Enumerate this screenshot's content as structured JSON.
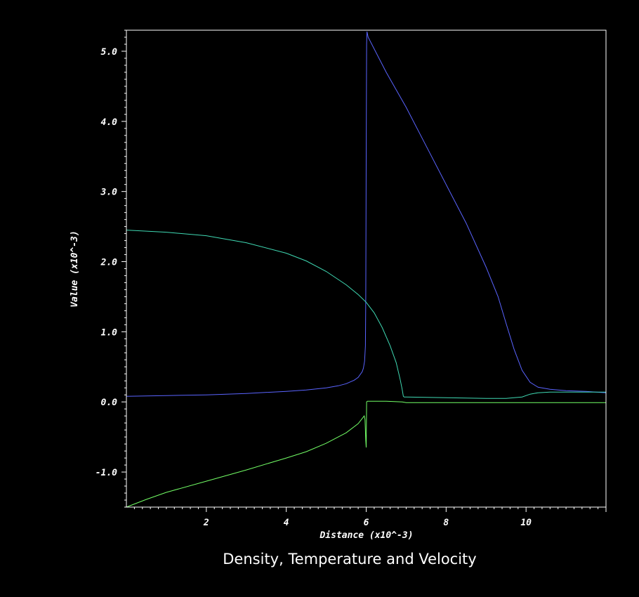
{
  "chart_data": {
    "type": "line",
    "title": "Density, Temperature and Velocity",
    "xlabel": "Distance (x10^-3)",
    "ylabel": "Value (x10^-3)",
    "xlim": [
      0,
      12
    ],
    "ylim": [
      -1.5,
      5.3
    ],
    "x_ticks": [
      2,
      4,
      6,
      8,
      10
    ],
    "x_tick_labels": [
      "2",
      "4",
      "6",
      "8",
      "10"
    ],
    "y_ticks": [
      -1.0,
      0.0,
      1.0,
      2.0,
      3.0,
      4.0,
      5.0
    ],
    "y_tick_labels": [
      "-1.0",
      "0.0",
      "1.0",
      "2.0",
      "3.0",
      "4.0",
      "5.0"
    ],
    "grid": false,
    "legend": "none",
    "colors": {
      "background": "#000000",
      "frame": "#ffffff",
      "text": "#ffffff"
    },
    "series": [
      {
        "color": "#5a64ff",
        "x": [
          0.0,
          1.0,
          2.0,
          3.0,
          4.0,
          4.5,
          5.0,
          5.3,
          5.5,
          5.7,
          5.8,
          5.9,
          5.93,
          5.96,
          5.98,
          5.99,
          6.0,
          6.01,
          6.02,
          6.05,
          6.5,
          7.0,
          7.5,
          8.0,
          8.5,
          9.0,
          9.3,
          9.5,
          9.7,
          9.9,
          10.1,
          10.3,
          10.6,
          11.0,
          11.5,
          12.0
        ],
        "y": [
          0.08,
          0.09,
          0.1,
          0.12,
          0.15,
          0.17,
          0.2,
          0.23,
          0.26,
          0.31,
          0.35,
          0.43,
          0.48,
          0.58,
          0.8,
          1.5,
          3.5,
          5.1,
          5.28,
          5.2,
          4.7,
          4.2,
          3.65,
          3.1,
          2.55,
          1.92,
          1.5,
          1.12,
          0.75,
          0.45,
          0.28,
          0.21,
          0.18,
          0.16,
          0.15,
          0.13
        ]
      },
      {
        "color": "#3fd9b3",
        "x": [
          0.0,
          1.0,
          2.0,
          3.0,
          4.0,
          4.5,
          5.0,
          5.5,
          5.8,
          6.0,
          6.2,
          6.4,
          6.6,
          6.75,
          6.85,
          6.9,
          6.93,
          6.95,
          7.0,
          8.0,
          9.0,
          9.5,
          9.9,
          10.1,
          10.3,
          10.6,
          11.0,
          11.5,
          12.0
        ],
        "y": [
          2.45,
          2.42,
          2.37,
          2.27,
          2.12,
          2.01,
          1.86,
          1.67,
          1.53,
          1.42,
          1.27,
          1.06,
          0.8,
          0.56,
          0.32,
          0.18,
          0.08,
          0.07,
          0.07,
          0.06,
          0.05,
          0.05,
          0.07,
          0.11,
          0.13,
          0.14,
          0.14,
          0.14,
          0.14
        ]
      },
      {
        "color": "#73ff66",
        "x": [
          0.0,
          0.5,
          1.0,
          2.0,
          3.0,
          4.0,
          4.5,
          5.0,
          5.5,
          5.8,
          5.95,
          5.97,
          5.99,
          6.0,
          6.01,
          6.03,
          6.5,
          6.9,
          7.0,
          8.0,
          9.0,
          10.0,
          11.0,
          12.0
        ],
        "y": [
          -1.5,
          -1.39,
          -1.29,
          -1.13,
          -0.97,
          -0.8,
          -0.71,
          -0.59,
          -0.44,
          -0.31,
          -0.2,
          -0.25,
          -0.55,
          -0.65,
          0.0,
          0.01,
          0.01,
          0.0,
          -0.01,
          -0.01,
          -0.01,
          -0.01,
          -0.01,
          -0.01
        ]
      }
    ]
  }
}
